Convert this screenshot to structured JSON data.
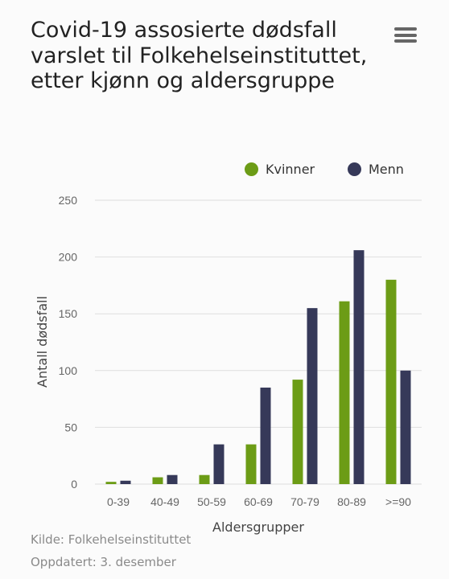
{
  "header": {
    "title": "Covid-19 assosierte dødsfall varslet til Folkehelseinstituttet, etter kjønn og aldersgruppe"
  },
  "colors": {
    "kvinner": "#6c9c16",
    "menn": "#363959",
    "grid": "#dedede",
    "background": "#fbfbfb"
  },
  "icons": {
    "menu": "hamburger-menu-icon"
  },
  "chart_data": {
    "type": "bar",
    "title": "Covid-19 assosierte dødsfall varslet til Folkehelseinstituttet, etter kjønn og aldersgruppe",
    "xlabel": "Aldersgrupper",
    "ylabel": "Antall dødsfall",
    "categories": [
      "0-39",
      "40-49",
      "50-59",
      "60-69",
      "70-79",
      "80-89",
      ">=90"
    ],
    "series": [
      {
        "name": "Kvinner",
        "values": [
          2,
          6,
          8,
          35,
          92,
          161,
          180
        ]
      },
      {
        "name": "Menn",
        "values": [
          3,
          8,
          35,
          85,
          155,
          206,
          100
        ]
      }
    ],
    "ylim": [
      0,
      250
    ],
    "yticks": [
      0,
      50,
      100,
      150,
      200,
      250
    ],
    "grid": true,
    "legend_position": "top-right"
  },
  "footer": {
    "source": "Kilde: Folkehelseinstituttet",
    "updated": "Oppdatert: 3. desember"
  }
}
